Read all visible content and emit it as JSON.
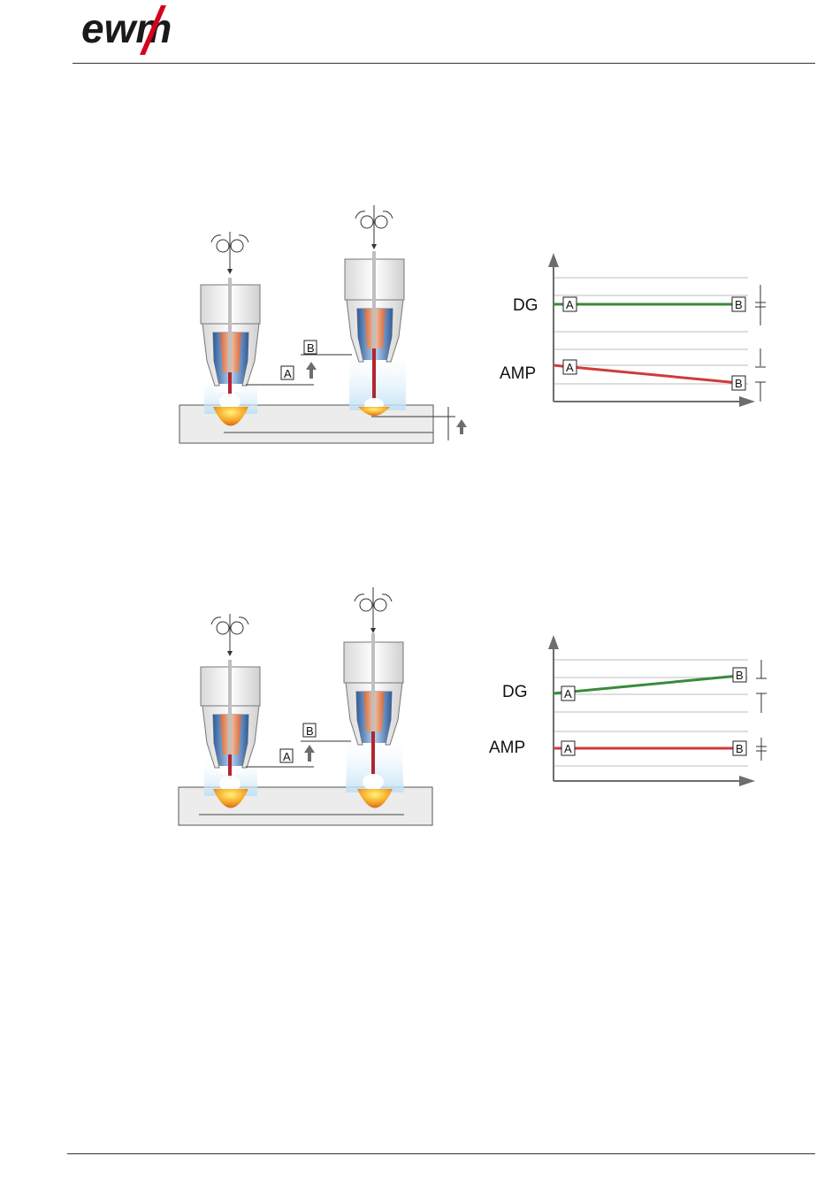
{
  "header": {
    "brand": "ewm"
  },
  "figure1": {
    "box_a": "A",
    "box_b": "B",
    "chart": {
      "label_top": "DG",
      "label_bottom": "AMP",
      "point_a": "A",
      "point_b": "B"
    }
  },
  "figure2": {
    "box_a": "A",
    "box_b": "B",
    "chart": {
      "label_top": "DG",
      "label_bottom": "AMP",
      "point_a": "A",
      "point_b": "B"
    }
  },
  "chart_data": [
    {
      "type": "line",
      "x": [
        "A",
        "B"
      ],
      "series": [
        {
          "name": "DG",
          "values": [
            1.0,
            1.0
          ],
          "color": "#3a8a3a"
        },
        {
          "name": "AMP",
          "values": [
            1.0,
            0.8
          ],
          "color": "#d23a3a"
        }
      ],
      "grid": true
    },
    {
      "type": "line",
      "x": [
        "A",
        "B"
      ],
      "series": [
        {
          "name": "DG",
          "values": [
            1.0,
            1.2
          ],
          "color": "#3a8a3a"
        },
        {
          "name": "AMP",
          "values": [
            1.0,
            1.0
          ],
          "color": "#d23a3a"
        }
      ],
      "grid": true
    }
  ],
  "colors": {
    "dg_line": "#3a8a3a",
    "amp_line": "#d23a3a",
    "logo_red": "#d6001c",
    "logo_dark": "#1a1a1a"
  }
}
